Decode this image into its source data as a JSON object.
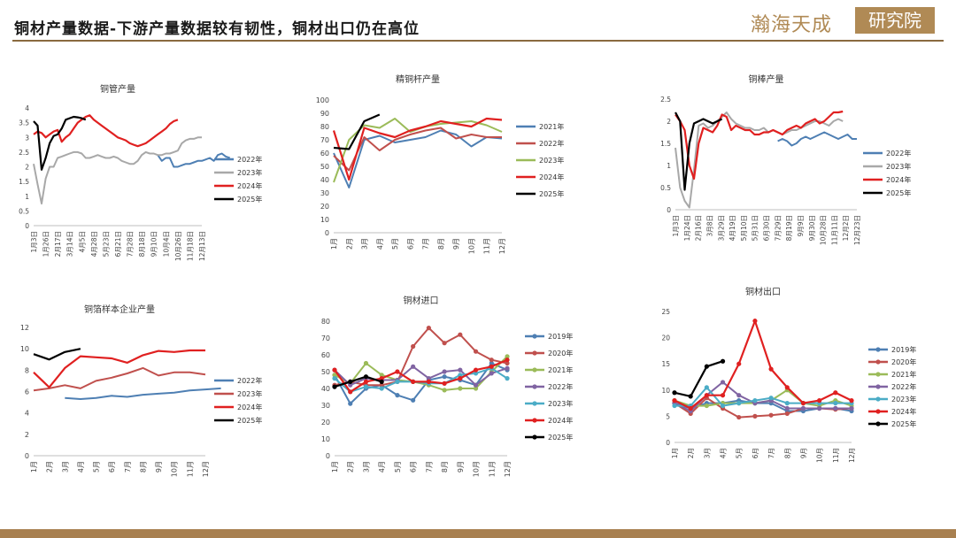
{
  "page": {
    "title": "铜材产量数据-下游产量数据较有韧性，铜材出口仍在高位",
    "logo_text": "瀚海天成",
    "logo_box": "研究院",
    "accent": "#8a6a3f"
  },
  "chart_data": [
    {
      "id": "c1",
      "type": "line",
      "title": "铜管产量",
      "ylim": [
        0,
        4
      ],
      "yticks": [
        "0",
        "0.5",
        "1",
        "1.5",
        "2",
        "2.5",
        "3",
        "3.5",
        "4"
      ],
      "xticks": [
        "1月3日",
        "1月26日",
        "2月17日",
        "3月14日",
        "4月5日",
        "4月28日",
        "5月23日",
        "6月21日",
        "7月28日",
        "8月18日",
        "9月10日",
        "10月4日",
        "10月26日",
        "11月18日",
        "12月13日"
      ],
      "legend": [
        "2022年",
        "2023年",
        "2024年",
        "2025年"
      ],
      "series": [
        {
          "name": "2022年",
          "color": "#4e7fb3",
          "start": 31,
          "values": [
            2.4,
            2.2,
            2.3,
            2.3,
            2.0,
            2.0,
            2.05,
            2.1,
            2.1,
            2.15,
            2.2,
            2.2,
            2.25,
            2.3,
            2.2,
            2.4,
            2.45,
            2.35,
            2.3
          ]
        },
        {
          "name": "2023年",
          "color": "#a8a8a8",
          "start": 0,
          "values": [
            2.1,
            1.4,
            0.75,
            1.6,
            2.0,
            2.0,
            2.3,
            2.35,
            2.4,
            2.45,
            2.5,
            2.5,
            2.45,
            2.3,
            2.3,
            2.35,
            2.4,
            2.35,
            2.3,
            2.3,
            2.35,
            2.3,
            2.2,
            2.15,
            2.1,
            2.1,
            2.2,
            2.4,
            2.5,
            2.45,
            2.45,
            2.4,
            2.4,
            2.45,
            2.45,
            2.5,
            2.55,
            2.8,
            2.9,
            2.95,
            2.95,
            3.0,
            3.0
          ]
        },
        {
          "name": "2024年",
          "color": "#e02020",
          "start": 0,
          "values": [
            3.1,
            3.2,
            3.15,
            3.0,
            3.1,
            3.2,
            3.25,
            2.85,
            3.0,
            3.1,
            3.3,
            3.5,
            3.6,
            3.7,
            3.75,
            3.6,
            3.5,
            3.4,
            3.3,
            3.2,
            3.1,
            3.0,
            2.95,
            2.9,
            2.8,
            2.75,
            2.7,
            2.75,
            2.8,
            2.9,
            3.0,
            3.1,
            3.2,
            3.3,
            3.45,
            3.55,
            3.6
          ]
        },
        {
          "name": "2025年",
          "color": "#000000",
          "start": 0,
          "values": [
            3.55,
            3.4,
            1.9,
            2.3,
            2.8,
            3.05,
            3.1,
            3.3,
            3.6,
            3.65,
            3.7,
            3.68,
            3.65,
            3.6
          ]
        }
      ],
      "npoints": 43
    },
    {
      "id": "c2",
      "type": "line",
      "title": "精铜杆产量",
      "ylim": [
        0,
        100
      ],
      "yticks": [
        "0",
        "10",
        "20",
        "30",
        "40",
        "50",
        "60",
        "70",
        "80",
        "90",
        "100"
      ],
      "xticks": [
        "1月",
        "2月",
        "3月",
        "4月",
        "5月",
        "6月",
        "7月",
        "8月",
        "9月",
        "10月",
        "11月",
        "12月"
      ],
      "legend": [
        "2021年",
        "2022年",
        "2023年",
        "2024年",
        "2025年"
      ],
      "series": [
        {
          "name": "2021年",
          "color": "#4e7fb3",
          "start": 0,
          "values": [
            60,
            34,
            70,
            73,
            68,
            70,
            72,
            77,
            74,
            65,
            72,
            71
          ]
        },
        {
          "name": "2022年",
          "color": "#c0504d",
          "start": 0,
          "values": [
            58,
            47,
            72,
            62,
            70,
            74,
            77,
            79,
            71,
            74,
            72,
            72
          ]
        },
        {
          "name": "2023年",
          "color": "#9bbb59",
          "start": 0,
          "values": [
            38,
            70,
            81,
            79,
            86,
            76,
            80,
            82,
            83,
            84,
            81,
            76
          ]
        },
        {
          "name": "2024年",
          "color": "#e02020",
          "start": 0,
          "values": [
            77,
            40,
            79,
            75,
            72,
            77,
            80,
            84,
            82,
            80,
            86,
            85
          ]
        },
        {
          "name": "2025年",
          "color": "#000000",
          "start": 0,
          "values": [
            64,
            63,
            84,
            89
          ]
        }
      ]
    },
    {
      "id": "c3",
      "type": "line",
      "title": "铜棒产量",
      "ylim": [
        0,
        2.5
      ],
      "yticks": [
        "0",
        "0.5",
        "1",
        "1.5",
        "2",
        "2.5"
      ],
      "xticks": [
        "1月3日",
        "1月24日",
        "2月16日",
        "3月8日",
        "3月29日",
        "4月19日",
        "5月10日",
        "5月31日",
        "6月30日",
        "7月29日",
        "8月19日",
        "9月9日",
        "9月30日",
        "10月28日",
        "11月11日",
        "12月2日",
        "12月23日"
      ],
      "legend": [
        "2022年",
        "2023年",
        "2024年",
        "2025年"
      ],
      "series": [
        {
          "name": "2022年",
          "color": "#4e7fb3",
          "start": 22,
          "values": [
            1.55,
            1.6,
            1.55,
            1.45,
            1.5,
            1.6,
            1.65,
            1.6,
            1.65,
            1.7,
            1.75,
            1.7,
            1.65,
            1.6,
            1.65,
            1.7,
            1.6,
            1.6
          ]
        },
        {
          "name": "2023年",
          "color": "#a8a8a8",
          "start": 0,
          "values": [
            1.4,
            0.5,
            0.2,
            0.05,
            0.9,
            1.9,
            1.95,
            1.85,
            1.9,
            2.0,
            2.1,
            2.2,
            2.05,
            1.95,
            1.9,
            1.85,
            1.85,
            1.8,
            1.8,
            1.85,
            1.75,
            1.8,
            1.75,
            1.7,
            1.75,
            1.8,
            1.8,
            1.85,
            1.9,
            1.95,
            2.0,
            2.0,
            1.95,
            1.9,
            2.0,
            2.05,
            2.0
          ]
        },
        {
          "name": "2024年",
          "color": "#e02020",
          "start": 0,
          "values": [
            2.15,
            2.0,
            1.8,
            1.0,
            0.7,
            1.5,
            1.85,
            1.8,
            1.75,
            1.9,
            2.15,
            2.1,
            1.8,
            1.9,
            1.85,
            1.8,
            1.8,
            1.7,
            1.7,
            1.75,
            1.75,
            1.8,
            1.75,
            1.7,
            1.8,
            1.85,
            1.9,
            1.85,
            1.95,
            2.0,
            2.05,
            1.95,
            2.0,
            2.1,
            2.2,
            2.2,
            2.22
          ]
        },
        {
          "name": "2025年",
          "color": "#000000",
          "start": 0,
          "values": [
            2.2,
            2.0,
            0.45,
            1.5,
            1.95,
            2.0,
            2.05,
            2.0,
            1.95,
            2.0,
            2.05
          ]
        }
      ],
      "npoints": 40
    },
    {
      "id": "c4",
      "type": "line",
      "title": "铜箔样本企业产量",
      "ylim": [
        0,
        12
      ],
      "yticks": [
        "0",
        "2",
        "4",
        "6",
        "8",
        "10",
        "12"
      ],
      "xticks": [
        "1月",
        "2月",
        "3月",
        "4月",
        "5月",
        "6月",
        "7月",
        "8月",
        "9月",
        "10月",
        "11月",
        "12月"
      ],
      "legend": [
        "2022年",
        "2023年",
        "2024年",
        "2025年"
      ],
      "series": [
        {
          "name": "2022年",
          "color": "#4e7fb3",
          "start": 2,
          "values": [
            5.4,
            5.3,
            5.4,
            5.6,
            5.5,
            5.7,
            5.8,
            5.9,
            6.1,
            6.2,
            6.3
          ]
        },
        {
          "name": "2023年",
          "color": "#c0504d",
          "start": 0,
          "values": [
            6.1,
            6.3,
            6.6,
            6.3,
            7.0,
            7.3,
            7.7,
            8.2,
            7.5,
            7.8,
            7.8,
            7.6
          ]
        },
        {
          "name": "2024年",
          "color": "#e02020",
          "start": 0,
          "values": [
            7.8,
            6.4,
            8.2,
            9.3,
            9.2,
            9.1,
            8.7,
            9.4,
            9.8,
            9.7,
            9.85,
            9.85
          ]
        },
        {
          "name": "2025年",
          "color": "#000000",
          "start": 0,
          "values": [
            9.5,
            9.0,
            9.7,
            10.0
          ]
        }
      ]
    },
    {
      "id": "c5",
      "type": "line",
      "title": "铜材进口",
      "ylim": [
        0,
        80
      ],
      "yticks": [
        "0",
        "10",
        "20",
        "30",
        "40",
        "50",
        "60",
        "70",
        "80"
      ],
      "xticks": [
        "1月",
        "2月",
        "3月",
        "4月",
        "5月",
        "6月",
        "7月",
        "8月",
        "9月",
        "10月",
        "11月",
        "12月"
      ],
      "legend": [
        "2019年",
        "2020年",
        "2021年",
        "2022年",
        "2023年",
        "2024年",
        "2025年"
      ],
      "series": [
        {
          "name": "2019年",
          "color": "#4e7fb3",
          "start": 0,
          "values": [
            48,
            31,
            40,
            42,
            36,
            33,
            45,
            47,
            45,
            42,
            55,
            51
          ]
        },
        {
          "name": "2020年",
          "color": "#c0504d",
          "start": 0,
          "values": [
            42,
            44,
            42,
            42,
            44,
            65,
            76,
            67,
            72,
            62,
            57,
            55
          ]
        },
        {
          "name": "2021年",
          "color": "#9bbb59",
          "start": 0,
          "values": [
            48,
            43,
            55,
            48,
            45,
            44,
            42,
            39,
            40,
            40,
            50,
            59
          ]
        },
        {
          "name": "2022年",
          "color": "#8064a2",
          "start": 0,
          "values": [
            51,
            42,
            46,
            45,
            45,
            53,
            46,
            50,
            51,
            42,
            49,
            52
          ]
        },
        {
          "name": "2023年",
          "color": "#4bacc6",
          "start": 0,
          "values": [
            46,
            38,
            41,
            40,
            44,
            44,
            43,
            43,
            48,
            49,
            52,
            46
          ]
        },
        {
          "name": "2024年",
          "color": "#e02020",
          "start": 0,
          "values": [
            51,
            38,
            44,
            46,
            50,
            44,
            44,
            43,
            46,
            51,
            53,
            57
          ]
        },
        {
          "name": "2025年",
          "color": "#000000",
          "start": 0,
          "values": [
            41,
            44,
            47,
            44
          ]
        }
      ]
    },
    {
      "id": "c6",
      "type": "line",
      "title": "铜材出口",
      "ylim": [
        0,
        25
      ],
      "yticks": [
        "0",
        "5",
        "10",
        "15",
        "20",
        "25"
      ],
      "xticks": [
        "1月",
        "2月",
        "3月",
        "4月",
        "5月",
        "6月",
        "7月",
        "8月",
        "9月",
        "10月",
        "11月",
        "12月"
      ],
      "legend": [
        "2019年",
        "2020年",
        "2021年",
        "2022年",
        "2023年",
        "2024年",
        "2025年"
      ],
      "series": [
        {
          "name": "2019年",
          "color": "#4e7fb3",
          "start": 0,
          "values": [
            7.5,
            6.5,
            7.5,
            7.5,
            8.0,
            7.5,
            7.5,
            6.0,
            6.0,
            6.5,
            6.5,
            6.0
          ]
        },
        {
          "name": "2020年",
          "color": "#c0504d",
          "start": 0,
          "values": [
            7.5,
            5.5,
            8.5,
            6.5,
            4.8,
            5.0,
            5.2,
            5.5,
            6.5,
            6.5,
            6.3,
            6.5
          ]
        },
        {
          "name": "2021年",
          "color": "#9bbb59",
          "start": 0,
          "values": [
            8.0,
            7.0,
            7.0,
            7.5,
            7.5,
            7.5,
            8.0,
            10.0,
            7.5,
            7.0,
            8.0,
            7.0
          ]
        },
        {
          "name": "2022年",
          "color": "#8064a2",
          "start": 0,
          "values": [
            7.5,
            6.0,
            9.0,
            11.5,
            9.0,
            7.5,
            8.0,
            6.5,
            6.5,
            6.5,
            6.5,
            6.5
          ]
        },
        {
          "name": "2023年",
          "color": "#4bacc6",
          "start": 0,
          "values": [
            7.0,
            7.0,
            10.5,
            7.0,
            7.5,
            8.0,
            8.5,
            7.5,
            7.5,
            7.5,
            7.5,
            7.5
          ]
        },
        {
          "name": "2024年",
          "color": "#e02020",
          "start": 0,
          "values": [
            8.0,
            6.5,
            9.0,
            9.0,
            15.0,
            23.2,
            14.0,
            10.5,
            7.5,
            8.0,
            9.5,
            8.0
          ]
        },
        {
          "name": "2025年",
          "color": "#000000",
          "start": 0,
          "values": [
            9.5,
            8.8,
            14.5,
            15.5
          ]
        }
      ]
    }
  ]
}
